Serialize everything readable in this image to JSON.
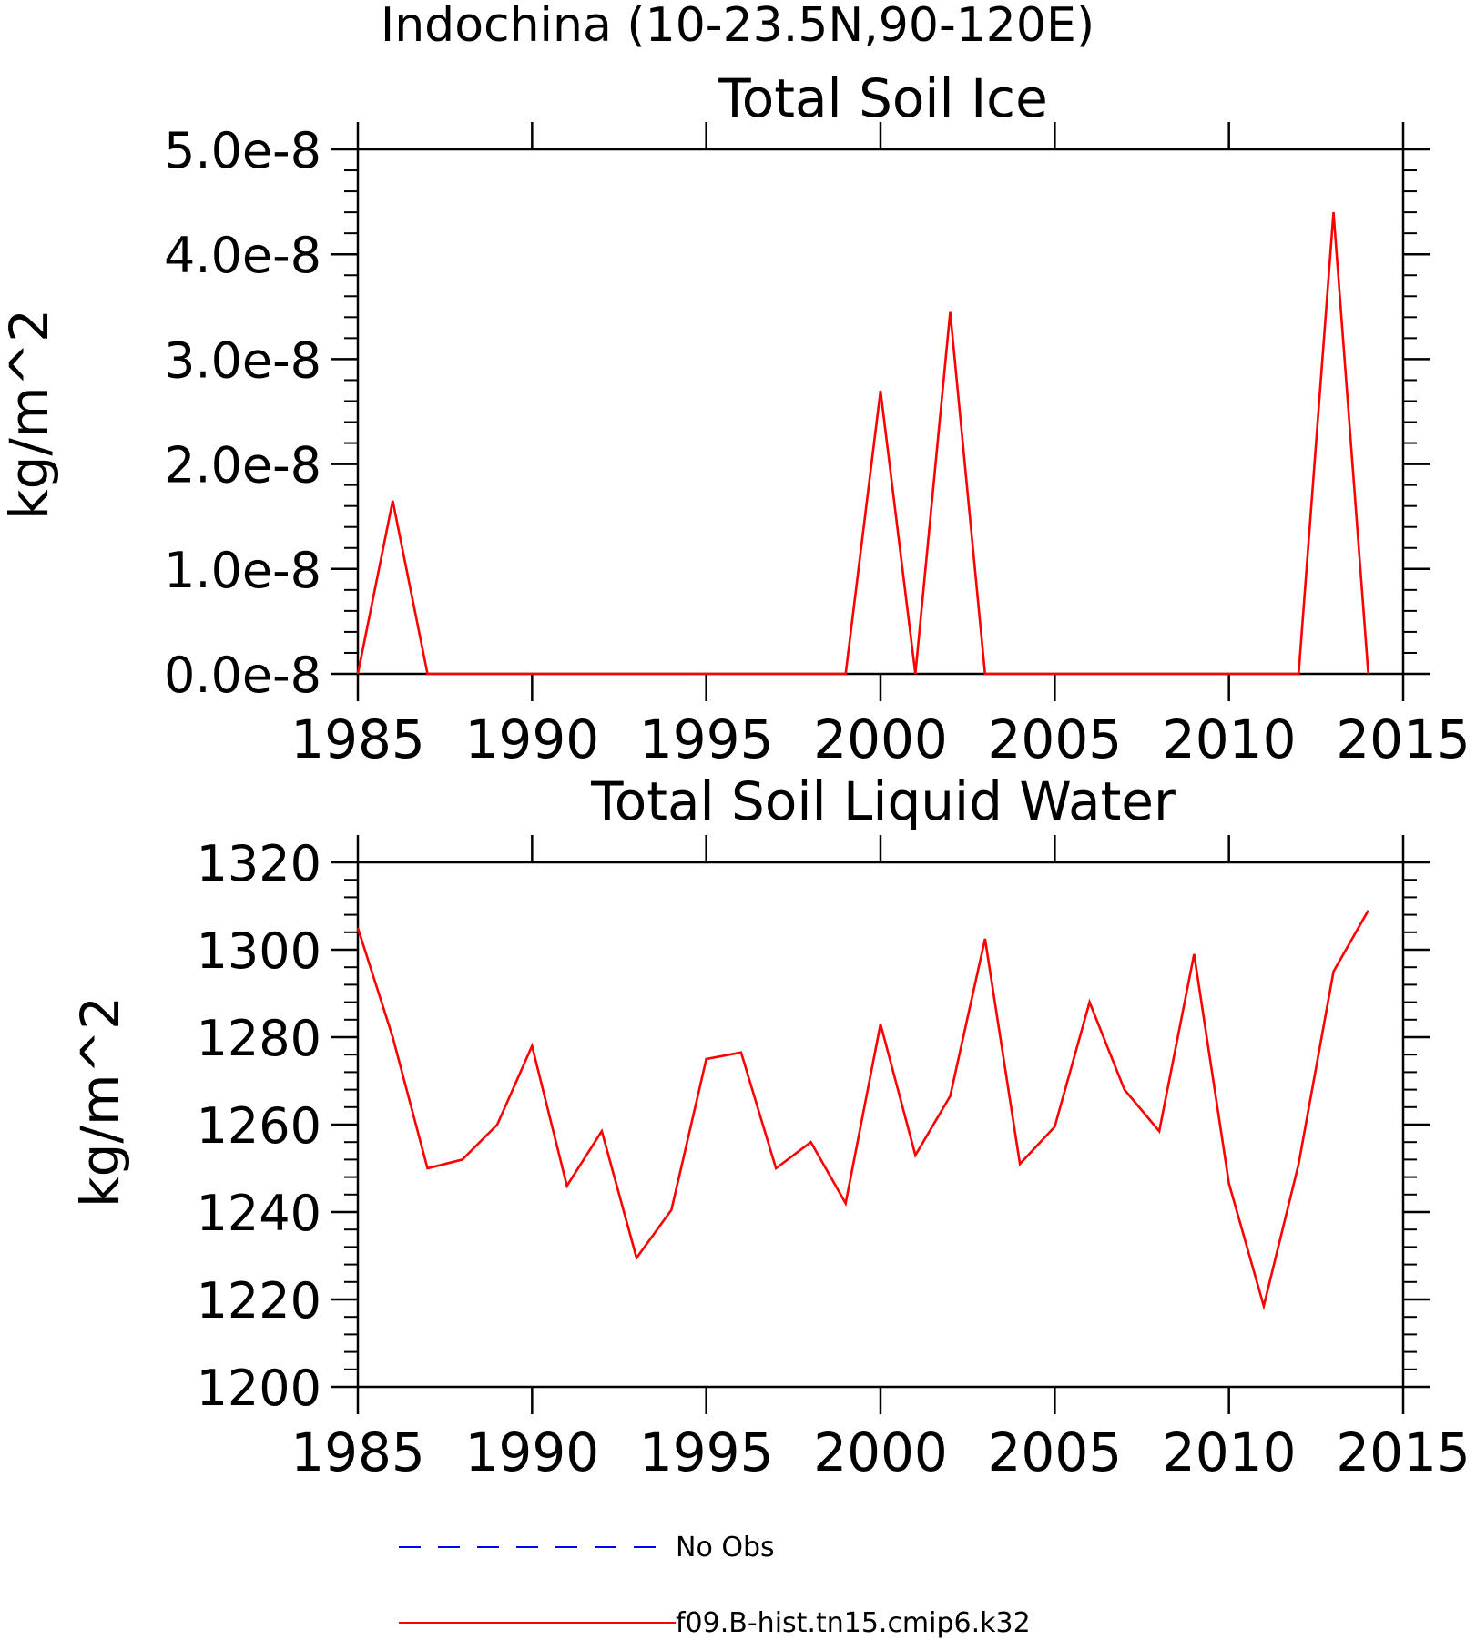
{
  "figure_title": "Indochina (10-23.5N,90-120E)",
  "legend": [
    {
      "label": "No Obs",
      "color": "#0000ff",
      "style": "dashed"
    },
    {
      "label": "f09.B-hist.tn15.cmip6.k32",
      "color": "#ff0000",
      "style": "solid"
    }
  ],
  "chart_data": [
    {
      "type": "line",
      "title": "Total Soil Ice",
      "xlabel": "",
      "ylabel": "kg/m^2",
      "xlim": [
        1985,
        2015
      ],
      "ylim": [
        0,
        5e-08
      ],
      "xticks": [
        1985,
        1990,
        1995,
        2000,
        2005,
        2010,
        2015
      ],
      "xtick_labels": [
        "1985",
        "1990",
        "1995",
        "2000",
        "2005",
        "2010",
        "2015"
      ],
      "yticks": [
        0,
        1e-08,
        2e-08,
        3e-08,
        4e-08,
        5e-08
      ],
      "ytick_labels": [
        "0.0e-8",
        "1.0e-8",
        "2.0e-8",
        "3.0e-8",
        "4.0e-8",
        "5.0e-8"
      ],
      "grid": false,
      "series": [
        {
          "name": "f09.B-hist.tn15.cmip6.k32",
          "color": "#ff0000",
          "x": [
            1985,
            1986,
            1987,
            1988,
            1989,
            1990,
            1991,
            1992,
            1993,
            1994,
            1995,
            1996,
            1997,
            1998,
            1999,
            2000,
            2001,
            2002,
            2003,
            2004,
            2005,
            2006,
            2007,
            2008,
            2009,
            2010,
            2011,
            2012,
            2013,
            2014
          ],
          "y": [
            0,
            1.65e-08,
            0,
            0,
            0,
            0,
            0,
            0,
            0,
            0,
            0,
            0,
            0,
            0,
            0,
            2.7e-08,
            0,
            3.45e-08,
            0,
            0,
            0,
            0,
            0,
            0,
            0,
            0,
            0,
            0,
            4.4e-08,
            0
          ]
        }
      ]
    },
    {
      "type": "line",
      "title": "Total Soil Liquid Water",
      "xlabel": "",
      "ylabel": "kg/m^2",
      "xlim": [
        1985,
        2015
      ],
      "ylim": [
        1200,
        1320
      ],
      "xticks": [
        1985,
        1990,
        1995,
        2000,
        2005,
        2010,
        2015
      ],
      "xtick_labels": [
        "1985",
        "1990",
        "1995",
        "2000",
        "2005",
        "2010",
        "2015"
      ],
      "yticks": [
        1200,
        1220,
        1240,
        1260,
        1280,
        1300,
        1320
      ],
      "ytick_labels": [
        "1200",
        "1220",
        "1240",
        "1260",
        "1280",
        "1300",
        "1320"
      ],
      "grid": false,
      "series": [
        {
          "name": "f09.B-hist.tn15.cmip6.k32",
          "color": "#ff0000",
          "x": [
            1985,
            1986,
            1987,
            1988,
            1989,
            1990,
            1991,
            1992,
            1993,
            1994,
            1995,
            1996,
            1997,
            1998,
            1999,
            2000,
            2001,
            2002,
            2003,
            2004,
            2005,
            2006,
            2007,
            2008,
            2009,
            2010,
            2011,
            2012,
            2013,
            2014
          ],
          "y": [
            1305,
            1280,
            1250,
            1252,
            1260,
            1278,
            1246,
            1258.5,
            1229.5,
            1240.5,
            1275,
            1276.5,
            1250,
            1256,
            1242,
            1283,
            1253,
            1266.5,
            1302.5,
            1251,
            1259.5,
            1288,
            1268,
            1258.5,
            1299,
            1246.5,
            1218.5,
            1251,
            1295,
            1309
          ]
        }
      ]
    }
  ]
}
